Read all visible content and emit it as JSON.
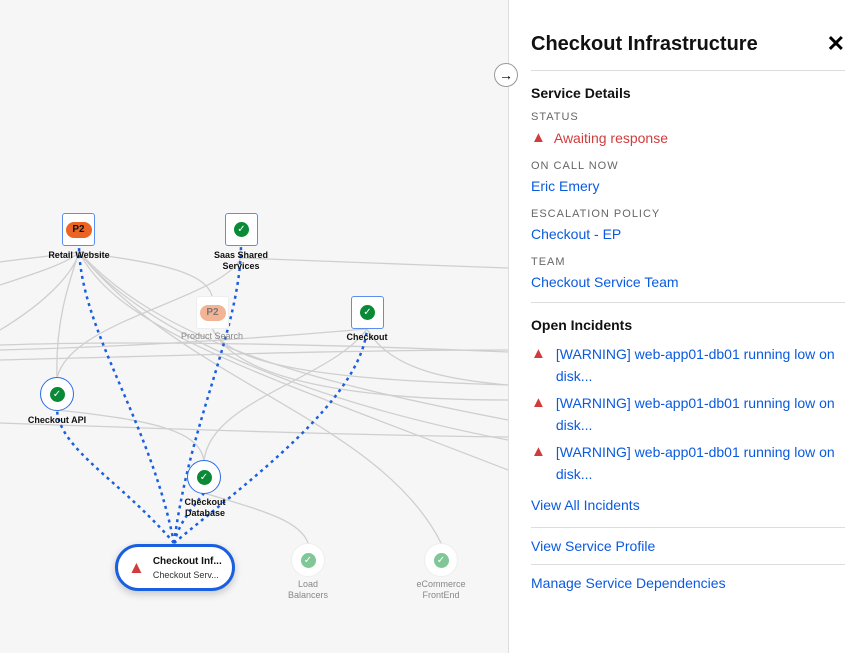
{
  "colors": {
    "accent": "#0a5ae0",
    "critical": "#d03c3c",
    "ok": "#0a8a36",
    "p2": "#ec6424"
  },
  "graph": {
    "nodes": {
      "retail": {
        "name": "Retail Website",
        "badge": "P2"
      },
      "saas": {
        "name": "Saas Shared Services",
        "status": "ok"
      },
      "product": {
        "name": "Product Search",
        "badge": "P2"
      },
      "checkout": {
        "name": "Checkout",
        "status": "ok"
      },
      "api": {
        "name": "Checkout API",
        "status": "ok"
      },
      "db": {
        "name": "Checkout Database",
        "status": "ok"
      },
      "lb": {
        "name": "Load Balancers",
        "status": "ok"
      },
      "ecom": {
        "name": "eCommerce FrontEnd",
        "status": "ok"
      }
    },
    "selected": {
      "title": "Checkout Inf...",
      "subtitle": "Checkout Serv...",
      "icon": "warning-icon"
    }
  },
  "panel": {
    "title": "Checkout Infrastructure",
    "toggle_icon": "arrow-right-icon",
    "close": "✕",
    "details_heading": "Service Details",
    "status_label": "STATUS",
    "status": "Awaiting response",
    "oncall_label": "ON CALL NOW",
    "oncall": "Eric Emery",
    "ep_label": "ESCALATION POLICY",
    "ep": "Checkout - EP",
    "team_label": "TEAM",
    "team": "Checkout Service Team",
    "incidents_heading": "Open Incidents",
    "incidents": [
      "[WARNING] web-app01-db01 running low on disk...",
      "[WARNING] web-app01-db01 running low on disk...",
      "[WARNING] web-app01-db01 running low on disk..."
    ],
    "view_all": "View All Incidents",
    "view_profile": "View Service Profile",
    "manage": "Manage Service Dependencies"
  }
}
